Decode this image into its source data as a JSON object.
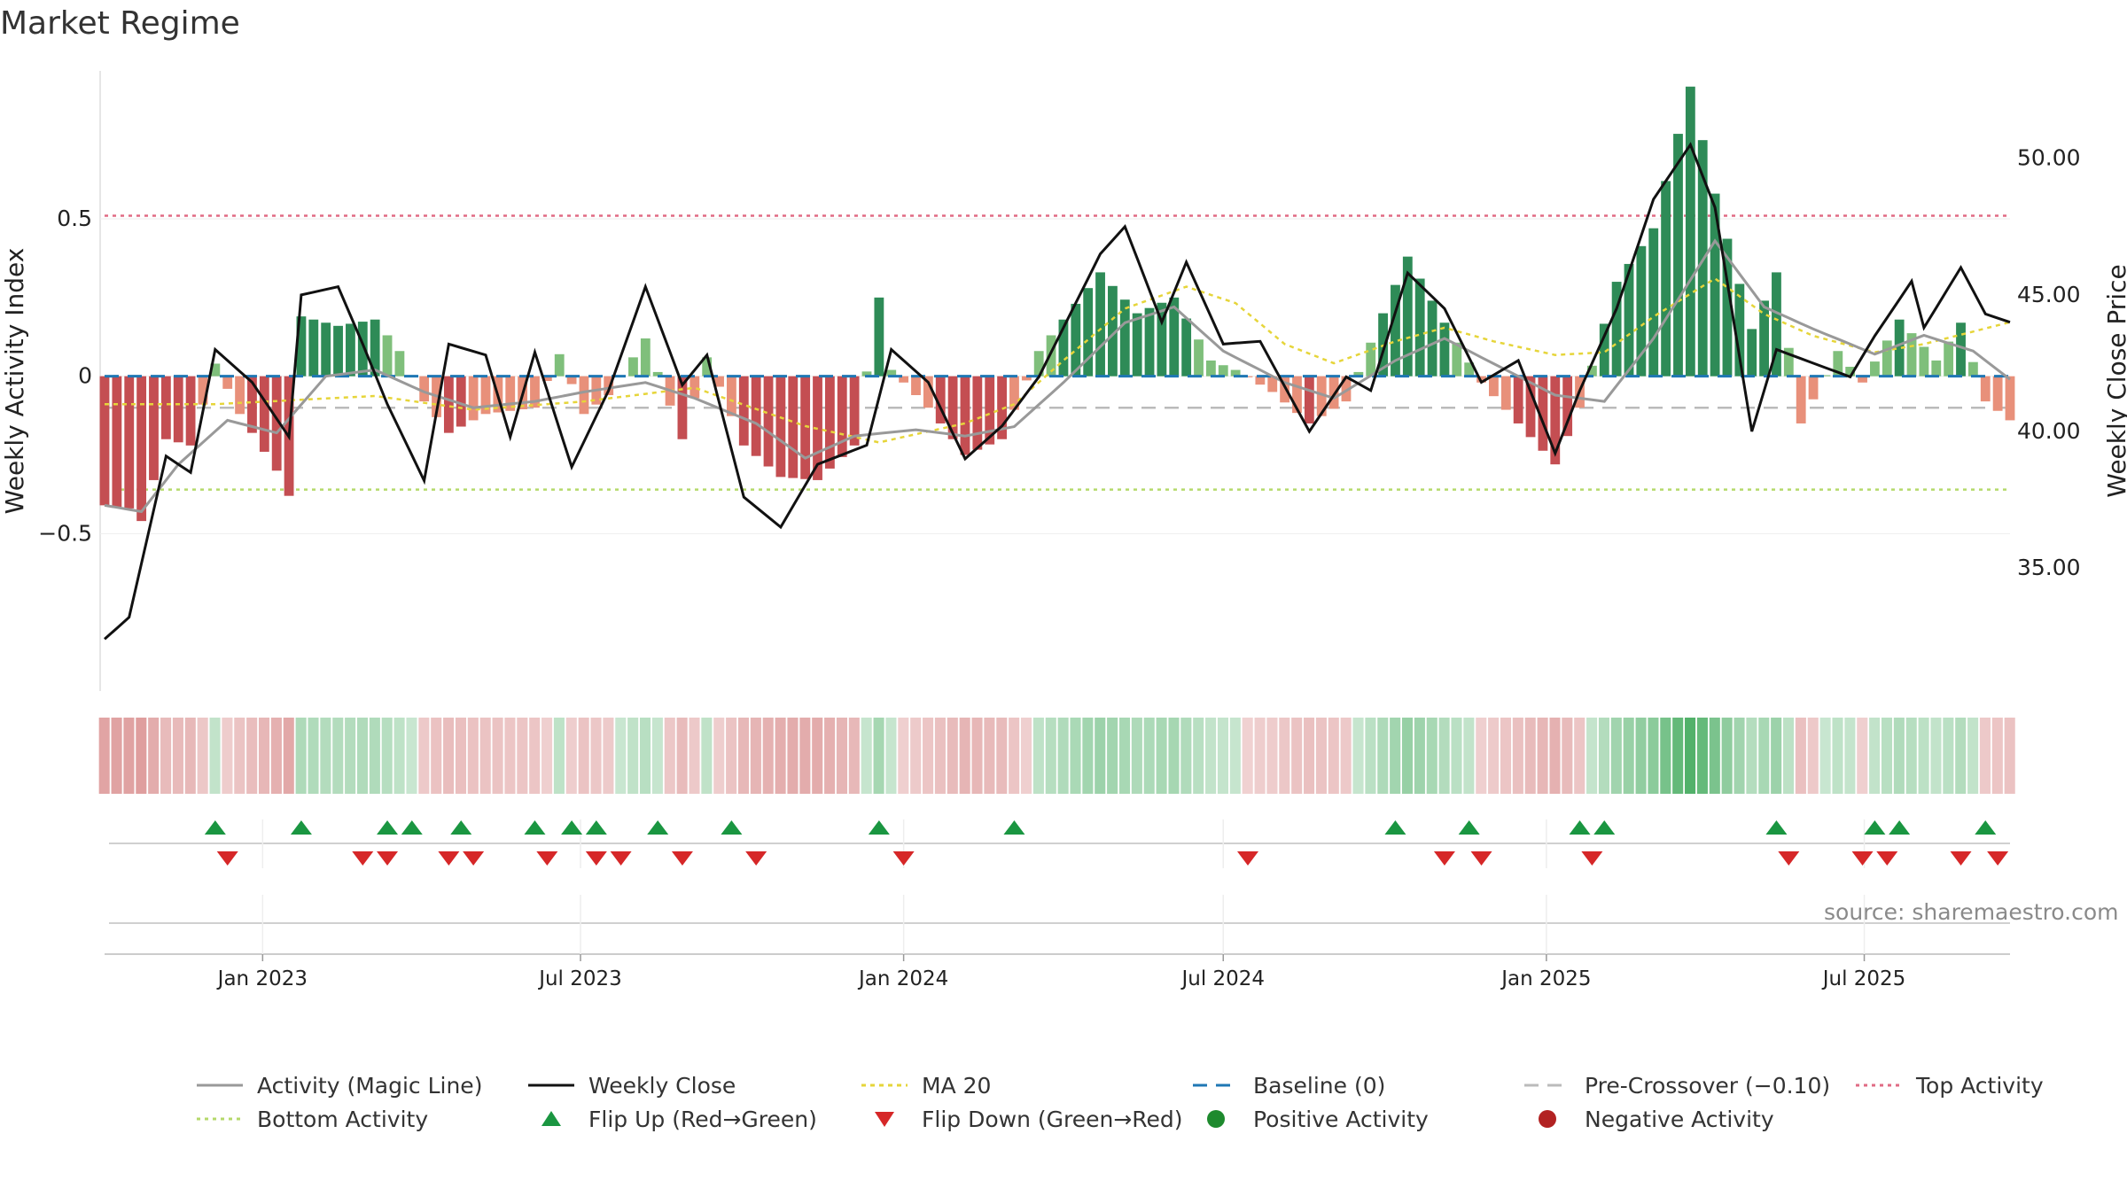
{
  "title": "Market Regime",
  "source_note": "source: sharemaestro.com",
  "colors": {
    "strong_green": "#2e8b57",
    "light_green": "#7fbf7b",
    "strong_red": "#c44e52",
    "light_red": "#e8907a",
    "magic_line": "#999999",
    "close": "#111111",
    "ma20": "#e6d53a",
    "baseline": "#1f77b4",
    "pre_crossover": "#bbbbbb",
    "top_activity": "#e06b84",
    "bottom_activity": "#b5d96b",
    "flip_up": "#1a9641",
    "flip_down": "#d62728"
  },
  "chart_data": {
    "type": "bar",
    "title": "Market Regime",
    "ylabel_left": "Weekly Activity Index",
    "ylabel_right": "Weekly Close Price",
    "left_axis": {
      "ylim": [
        -1.0,
        0.97
      ],
      "ticks": [
        -0.5,
        0,
        0.5
      ],
      "tick_labels": [
        "−0.5",
        "0",
        "0.5"
      ]
    },
    "right_axis": {
      "ylim": [
        30.5,
        53.2
      ],
      "ticks": [
        35,
        40,
        45,
        50
      ],
      "tick_labels": [
        "35.00",
        "40.00",
        "45.00",
        "50.00"
      ]
    },
    "x_axis": {
      "start": "2022-10-03",
      "end": "2025-09-22",
      "ticks": [
        "2023-01-01",
        "2023-07-01",
        "2024-01-01",
        "2024-07-01",
        "2025-01-01",
        "2025-07-01"
      ],
      "tick_labels": [
        "Jan 2023",
        "Jul 2023",
        "Jan 2024",
        "Jul 2024",
        "Jan 2025",
        "Jul 2025"
      ]
    },
    "reference_lines": {
      "top_activity": 0.51,
      "bottom_activity": -0.36,
      "pre_crossover": -0.1,
      "baseline": 0
    },
    "anchors": {
      "activity": [
        [
          "2022-10-03",
          -0.41
        ],
        [
          "2022-10-17",
          -0.42
        ],
        [
          "2022-10-24",
          -0.46
        ],
        [
          "2022-11-07",
          -0.2
        ],
        [
          "2022-11-21",
          -0.22
        ],
        [
          "2022-12-05",
          0.04
        ],
        [
          "2022-12-19",
          -0.12
        ],
        [
          "2023-01-09",
          -0.3
        ],
        [
          "2023-01-16",
          -0.38
        ],
        [
          "2023-01-23",
          0.19
        ],
        [
          "2023-02-13",
          0.16
        ],
        [
          "2023-03-06",
          0.18
        ],
        [
          "2023-03-20",
          0.08
        ],
        [
          "2023-04-03",
          -0.08
        ],
        [
          "2023-04-17",
          -0.18
        ],
        [
          "2023-05-08",
          -0.12
        ],
        [
          "2023-06-05",
          -0.1
        ],
        [
          "2023-06-19",
          0.07
        ],
        [
          "2023-07-03",
          -0.12
        ],
        [
          "2023-07-17",
          -0.06
        ],
        [
          "2023-08-07",
          0.12
        ],
        [
          "2023-08-28",
          -0.2
        ],
        [
          "2023-09-11",
          0.06
        ],
        [
          "2023-10-02",
          -0.22
        ],
        [
          "2023-10-23",
          -0.32
        ],
        [
          "2023-11-13",
          -0.33
        ],
        [
          "2023-12-04",
          -0.22
        ],
        [
          "2023-12-18",
          0.25
        ],
        [
          "2023-12-25",
          0.02
        ],
        [
          "2024-01-15",
          -0.1
        ],
        [
          "2024-02-05",
          -0.25
        ],
        [
          "2024-02-26",
          -0.2
        ],
        [
          "2024-03-18",
          0.08
        ],
        [
          "2024-04-15",
          0.28
        ],
        [
          "2024-04-22",
          0.33
        ],
        [
          "2024-05-13",
          0.2
        ],
        [
          "2024-06-03",
          0.25
        ],
        [
          "2024-06-24",
          0.05
        ],
        [
          "2024-07-08",
          0.02
        ],
        [
          "2024-07-29",
          -0.05
        ],
        [
          "2024-08-19",
          -0.15
        ],
        [
          "2024-09-09",
          -0.08
        ],
        [
          "2024-09-30",
          0.2
        ],
        [
          "2024-10-14",
          0.38
        ],
        [
          "2024-11-04",
          0.17
        ],
        [
          "2024-11-25",
          -0.02
        ],
        [
          "2024-12-16",
          -0.15
        ],
        [
          "2025-01-06",
          -0.28
        ],
        [
          "2025-01-20",
          -0.1
        ],
        [
          "2025-02-10",
          0.3
        ],
        [
          "2025-03-03",
          0.47
        ],
        [
          "2025-03-24",
          0.92
        ],
        [
          "2025-04-07",
          0.58
        ],
        [
          "2025-04-28",
          0.15
        ],
        [
          "2025-05-12",
          0.33
        ],
        [
          "2025-05-26",
          -0.15
        ],
        [
          "2025-06-16",
          0.08
        ],
        [
          "2025-06-30",
          -0.02
        ],
        [
          "2025-07-21",
          0.18
        ],
        [
          "2025-08-11",
          0.05
        ],
        [
          "2025-08-25",
          0.17
        ],
        [
          "2025-09-08",
          -0.08
        ],
        [
          "2025-09-22",
          -0.14
        ]
      ],
      "magic_line": [
        [
          "2022-10-03",
          -0.41
        ],
        [
          "2022-10-24",
          -0.43
        ],
        [
          "2022-11-14",
          -0.28
        ],
        [
          "2022-12-12",
          -0.14
        ],
        [
          "2023-01-09",
          -0.18
        ],
        [
          "2023-02-06",
          0.0
        ],
        [
          "2023-03-06",
          0.02
        ],
        [
          "2023-04-03",
          -0.05
        ],
        [
          "2023-05-01",
          -0.1
        ],
        [
          "2023-06-05",
          -0.08
        ],
        [
          "2023-07-03",
          -0.05
        ],
        [
          "2023-08-07",
          -0.02
        ],
        [
          "2023-09-04",
          -0.07
        ],
        [
          "2023-10-09",
          -0.15
        ],
        [
          "2023-11-06",
          -0.26
        ],
        [
          "2023-12-04",
          -0.19
        ],
        [
          "2024-01-08",
          -0.17
        ],
        [
          "2024-02-05",
          -0.19
        ],
        [
          "2024-03-04",
          -0.16
        ],
        [
          "2024-04-01",
          -0.02
        ],
        [
          "2024-05-06",
          0.17
        ],
        [
          "2024-06-03",
          0.22
        ],
        [
          "2024-07-01",
          0.08
        ],
        [
          "2024-08-05",
          -0.02
        ],
        [
          "2024-09-02",
          -0.07
        ],
        [
          "2024-10-07",
          0.05
        ],
        [
          "2024-11-04",
          0.12
        ],
        [
          "2024-12-02",
          0.04
        ],
        [
          "2025-01-06",
          -0.06
        ],
        [
          "2025-02-03",
          -0.08
        ],
        [
          "2025-03-03",
          0.12
        ],
        [
          "2025-04-07",
          0.43
        ],
        [
          "2025-05-05",
          0.22
        ],
        [
          "2025-06-02",
          0.15
        ],
        [
          "2025-07-07",
          0.07
        ],
        [
          "2025-08-04",
          0.13
        ],
        [
          "2025-09-01",
          0.08
        ],
        [
          "2025-09-22",
          -0.01
        ]
      ],
      "close": [
        [
          "2022-10-03",
          32.4
        ],
        [
          "2022-10-17",
          33.2
        ],
        [
          "2022-11-07",
          39.1
        ],
        [
          "2022-11-21",
          38.5
        ],
        [
          "2022-12-05",
          43.0
        ],
        [
          "2022-12-26",
          41.8
        ],
        [
          "2023-01-16",
          39.8
        ],
        [
          "2023-01-23",
          45.0
        ],
        [
          "2023-02-13",
          45.3
        ],
        [
          "2023-02-27",
          43.2
        ],
        [
          "2023-03-13",
          41.0
        ],
        [
          "2023-04-03",
          38.2
        ],
        [
          "2023-04-17",
          43.2
        ],
        [
          "2023-05-08",
          42.8
        ],
        [
          "2023-05-22",
          39.8
        ],
        [
          "2023-06-05",
          42.9
        ],
        [
          "2023-06-26",
          38.7
        ],
        [
          "2023-07-17",
          41.5
        ],
        [
          "2023-08-07",
          45.3
        ],
        [
          "2023-08-28",
          41.7
        ],
        [
          "2023-09-11",
          42.8
        ],
        [
          "2023-10-02",
          37.6
        ],
        [
          "2023-10-23",
          36.5
        ],
        [
          "2023-11-13",
          38.8
        ],
        [
          "2023-12-11",
          39.5
        ],
        [
          "2023-12-25",
          43.0
        ],
        [
          "2024-01-15",
          41.8
        ],
        [
          "2024-02-05",
          39.0
        ],
        [
          "2024-02-26",
          40.2
        ],
        [
          "2024-03-18",
          42.0
        ],
        [
          "2024-04-22",
          46.5
        ],
        [
          "2024-05-06",
          47.5
        ],
        [
          "2024-05-27",
          44.0
        ],
        [
          "2024-06-10",
          46.2
        ],
        [
          "2024-07-01",
          43.2
        ],
        [
          "2024-07-22",
          43.3
        ],
        [
          "2024-08-19",
          40.0
        ],
        [
          "2024-09-09",
          42.0
        ],
        [
          "2024-09-23",
          41.5
        ],
        [
          "2024-10-14",
          45.8
        ],
        [
          "2024-11-04",
          44.5
        ],
        [
          "2024-11-25",
          41.8
        ],
        [
          "2024-12-16",
          42.6
        ],
        [
          "2025-01-06",
          39.2
        ],
        [
          "2025-01-20",
          41.5
        ],
        [
          "2025-02-10",
          44.5
        ],
        [
          "2025-03-03",
          48.5
        ],
        [
          "2025-03-24",
          50.5
        ],
        [
          "2025-04-07",
          48.2
        ],
        [
          "2025-04-28",
          40.0
        ],
        [
          "2025-05-12",
          43.0
        ],
        [
          "2025-06-02",
          42.5
        ],
        [
          "2025-06-23",
          42.0
        ],
        [
          "2025-07-07",
          43.5
        ],
        [
          "2025-07-28",
          45.5
        ],
        [
          "2025-08-04",
          43.8
        ],
        [
          "2025-08-25",
          46.0
        ],
        [
          "2025-09-08",
          44.3
        ],
        [
          "2025-09-22",
          44.0
        ]
      ],
      "ma20": [
        [
          "2022-10-03",
          41.0
        ],
        [
          "2022-12-05",
          41.0
        ],
        [
          "2023-03-06",
          41.3
        ],
        [
          "2023-05-01",
          40.8
        ],
        [
          "2023-07-03",
          41.1
        ],
        [
          "2023-09-04",
          41.6
        ],
        [
          "2023-11-06",
          40.2
        ],
        [
          "2023-12-18",
          39.6
        ],
        [
          "2024-02-05",
          40.3
        ],
        [
          "2024-03-04",
          41.0
        ],
        [
          "2024-04-01",
          42.6
        ],
        [
          "2024-05-06",
          44.5
        ],
        [
          "2024-06-10",
          45.3
        ],
        [
          "2024-07-08",
          44.7
        ],
        [
          "2024-08-05",
          43.2
        ],
        [
          "2024-09-02",
          42.5
        ],
        [
          "2024-10-07",
          43.3
        ],
        [
          "2024-11-04",
          43.8
        ],
        [
          "2024-12-02",
          43.3
        ],
        [
          "2025-01-06",
          42.8
        ],
        [
          "2025-02-03",
          42.9
        ],
        [
          "2025-03-03",
          44.2
        ],
        [
          "2025-04-07",
          45.6
        ],
        [
          "2025-05-05",
          44.3
        ],
        [
          "2025-06-02",
          43.5
        ],
        [
          "2025-07-07",
          42.9
        ],
        [
          "2025-08-04",
          43.2
        ],
        [
          "2025-09-22",
          44.0
        ]
      ]
    },
    "flips_up": [
      "2022-12-05",
      "2023-01-23",
      "2023-03-13",
      "2023-03-27",
      "2023-04-24",
      "2023-06-05",
      "2023-06-26",
      "2023-07-10",
      "2023-08-14",
      "2023-09-25",
      "2023-12-18",
      "2024-03-04",
      "2024-10-07",
      "2024-11-18",
      "2025-01-20",
      "2025-02-03",
      "2025-05-12",
      "2025-07-07",
      "2025-07-21",
      "2025-09-08"
    ],
    "flips_down": [
      "2022-12-12",
      "2023-02-27",
      "2023-03-13",
      "2023-04-17",
      "2023-05-01",
      "2023-06-12",
      "2023-07-10",
      "2023-07-24",
      "2023-08-28",
      "2023-10-09",
      "2024-01-01",
      "2024-07-15",
      "2024-11-04",
      "2024-11-25",
      "2025-01-27",
      "2025-05-19",
      "2025-06-30",
      "2025-07-14",
      "2025-08-25",
      "2025-09-15"
    ],
    "heatmap_strip": "weekly regime strength, color mirrors activity bars"
  },
  "legend": {
    "magic_line": "Activity (Magic Line)",
    "close": "Weekly Close",
    "ma20": "MA 20",
    "baseline": "Baseline (0)",
    "pre_crossover": "Pre-Crossover (−0.10)",
    "top_activity": "Top Activity",
    "bottom_activity": "Bottom Activity",
    "flip_up": "Flip Up (Red→Green)",
    "flip_down": "Flip Down (Green→Red)",
    "positive": "Positive Activity",
    "negative": "Negative Activity"
  }
}
